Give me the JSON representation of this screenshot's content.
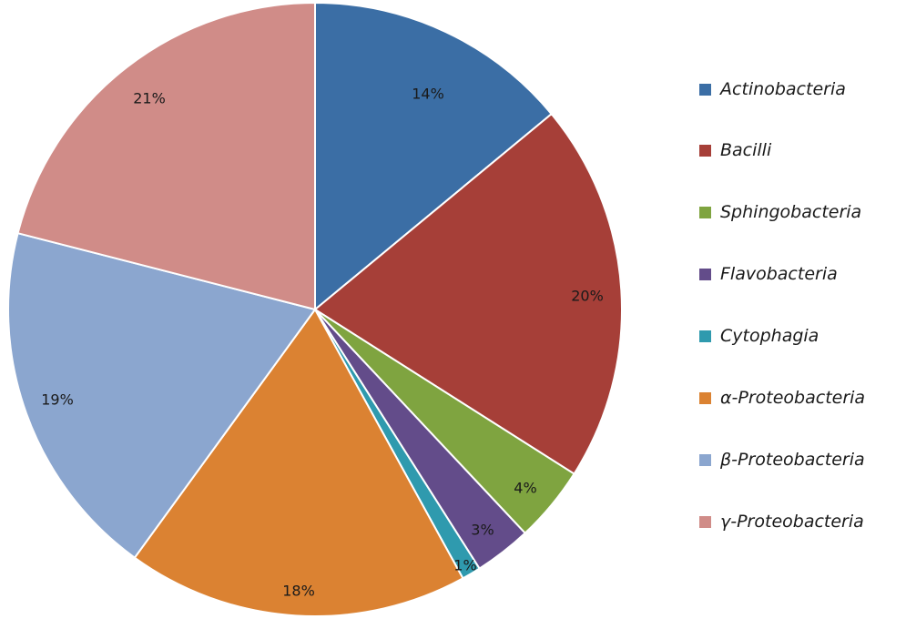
{
  "chart_data": {
    "type": "pie",
    "title": "",
    "categories": [
      "Actinobacteria",
      "Bacilli",
      "Sphingobacteria",
      "Flavobacteria",
      "Cytophagia",
      "α-Proteobacteria",
      "β-Proteobacteria",
      "γ-Proteobacteria"
    ],
    "values": [
      14,
      20,
      4,
      3,
      1,
      18,
      19,
      21
    ],
    "labels": [
      "14%",
      "20%",
      "4%",
      "3%",
      "1%",
      "18%",
      "19%",
      "21%"
    ],
    "colors": [
      "#3B6EA5",
      "#A63F38",
      "#7FA440",
      "#634C8A",
      "#2F9AAE",
      "#DB8232",
      "#8BA6CF",
      "#D08C88"
    ],
    "legend_position": "right",
    "start_angle": "top, clockwise"
  }
}
